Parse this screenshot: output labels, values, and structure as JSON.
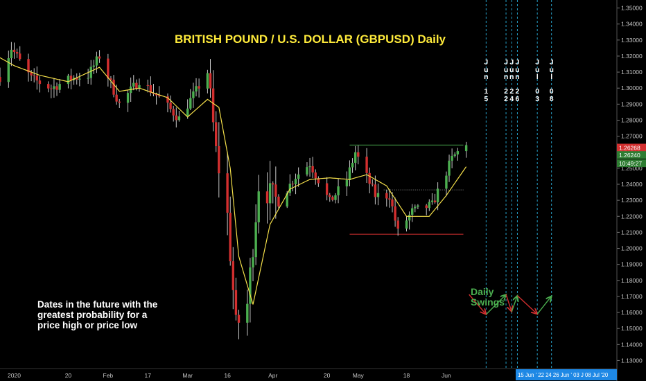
{
  "title": "BRITISH POUND / U.S. DOLLAR (GBPUSD) Daily",
  "note": "Dates in the future with the\ngreatest probability for a\nprice high or price low",
  "swings_label": "Daily\nSwings",
  "colors": {
    "up": "#4caf50",
    "down": "#d32f2f",
    "ma": "#f5e04a",
    "cycle_line": "#26a0c8",
    "title": "#ffeb3b",
    "resistance": "#4caf50",
    "support": "#d32f2f"
  },
  "chart_data": {
    "type": "candlestick",
    "title": "BRITISH POUND / U.S. DOLLAR (GBPUSD) Daily",
    "y_axis": {
      "position": "right",
      "range": [
        1.125,
        1.355
      ],
      "ticks": [
        1.13,
        1.14,
        1.15,
        1.16,
        1.17,
        1.18,
        1.19,
        1.2,
        1.21,
        1.22,
        1.23,
        1.24,
        1.25,
        1.26,
        1.27,
        1.28,
        1.29,
        1.3,
        1.31,
        1.32,
        1.33,
        1.34,
        1.35
      ],
      "tick_labels": [
        "1.13000",
        "1.14000",
        "1.15000",
        "1.16000",
        "1.17000",
        "1.18000",
        "1.19000",
        "1.20000",
        "1.21000",
        "1.22000",
        "1.23000",
        "1.24000",
        "1.25000",
        "1.26000",
        "1.27000",
        "1.28000",
        "1.29000",
        "1.30000",
        "1.31000",
        "1.32000",
        "1.33000",
        "1.34000",
        "1.35000"
      ]
    },
    "x_axis": {
      "range": [
        "2019-12-27",
        "2020-07-31"
      ],
      "ticks": [
        {
          "date": "2020-01-01",
          "label": "2020"
        },
        {
          "date": "2020-01-20",
          "label": "20"
        },
        {
          "date": "2020-02-03",
          "label": "Feb"
        },
        {
          "date": "2020-02-17",
          "label": "17"
        },
        {
          "date": "2020-03-02",
          "label": "Mar"
        },
        {
          "date": "2020-03-16",
          "label": "16"
        },
        {
          "date": "2020-04-01",
          "label": "Apr"
        },
        {
          "date": "2020-04-20",
          "label": "20"
        },
        {
          "date": "2020-05-01",
          "label": "May"
        },
        {
          "date": "2020-05-18",
          "label": "18"
        },
        {
          "date": "2020-06-01",
          "label": "Jun"
        }
      ]
    },
    "last_price_labels": [
      "1.26268",
      "1.26240",
      "10:49:27"
    ],
    "future_date_strip": "15 Jun ' 22 24 26 Jun ' 03 J 08 Jul '20",
    "cycle_dates": [
      {
        "date": "2020-06-15",
        "label": "Jun 15"
      },
      {
        "date": "2020-06-22",
        "label": "Jun 22"
      },
      {
        "date": "2020-06-24",
        "label": "Jun 24"
      },
      {
        "date": "2020-06-26",
        "label": "Jun 26"
      },
      {
        "date": "2020-07-03",
        "label": "Jul 03"
      },
      {
        "date": "2020-07-08",
        "label": "Jul 08"
      }
    ],
    "horizontal_lines": [
      {
        "kind": "resistance",
        "value": 1.2645,
        "from": "2020-04-28",
        "to": "2020-06-07"
      },
      {
        "kind": "support",
        "value": 1.2088,
        "from": "2020-04-28",
        "to": "2020-06-07"
      },
      {
        "kind": "dotted",
        "value": 1.2365,
        "from": "2020-05-10",
        "to": "2020-06-07"
      }
    ],
    "swing_zigzag": [
      {
        "date": "2020-06-09",
        "value": 1.1712,
        "color": "down"
      },
      {
        "date": "2020-06-15",
        "value": 1.1588,
        "color": "up"
      },
      {
        "date": "2020-06-22",
        "value": 1.1712,
        "color": "down"
      },
      {
        "date": "2020-06-24",
        "value": 1.1605,
        "color": "up"
      },
      {
        "date": "2020-06-26",
        "value": 1.1705,
        "color": "down"
      },
      {
        "date": "2020-07-03",
        "value": 1.159,
        "color": "up"
      },
      {
        "date": "2020-07-08",
        "value": 1.1702,
        "color": "none"
      }
    ],
    "series": [
      {
        "name": "GBPUSD",
        "type": "candlestick",
        "keypoints": [
          [
            "2019-12-27",
            1.307
          ],
          [
            "2019-12-31",
            1.325
          ],
          [
            "2020-01-07",
            1.306
          ],
          [
            "2020-01-14",
            1.3
          ],
          [
            "2020-01-21",
            1.306
          ],
          [
            "2020-01-27",
            1.308
          ],
          [
            "2020-01-31",
            1.32
          ],
          [
            "2020-02-07",
            1.29
          ],
          [
            "2020-02-14",
            1.305
          ],
          [
            "2020-02-21",
            1.294
          ],
          [
            "2020-02-28",
            1.281
          ],
          [
            "2020-03-09",
            1.31
          ],
          [
            "2020-03-12",
            1.26
          ],
          [
            "2020-03-16",
            1.22
          ],
          [
            "2020-03-19",
            1.151
          ],
          [
            "2020-03-23",
            1.165
          ],
          [
            "2020-03-27",
            1.24
          ],
          [
            "2020-04-03",
            1.229
          ],
          [
            "2020-04-09",
            1.245
          ],
          [
            "2020-04-14",
            1.253
          ],
          [
            "2020-04-21",
            1.229
          ],
          [
            "2020-04-27",
            1.243
          ],
          [
            "2020-04-30",
            1.26
          ],
          [
            "2020-05-07",
            1.233
          ],
          [
            "2020-05-12",
            1.233
          ],
          [
            "2020-05-15",
            1.21
          ],
          [
            "2020-05-20",
            1.223
          ],
          [
            "2020-05-27",
            1.227
          ],
          [
            "2020-06-03",
            1.256
          ],
          [
            "2020-06-08",
            1.266
          ]
        ]
      },
      {
        "name": "moving average",
        "type": "line",
        "keypoints": [
          [
            "2019-12-27",
            1.319
          ],
          [
            "2020-01-01",
            1.314
          ],
          [
            "2020-01-10",
            1.308
          ],
          [
            "2020-01-20",
            1.304
          ],
          [
            "2020-01-31",
            1.313
          ],
          [
            "2020-02-07",
            1.298
          ],
          [
            "2020-02-14",
            1.3
          ],
          [
            "2020-02-24",
            1.294
          ],
          [
            "2020-03-02",
            1.282
          ],
          [
            "2020-03-09",
            1.293
          ],
          [
            "2020-03-13",
            1.288
          ],
          [
            "2020-03-17",
            1.25
          ],
          [
            "2020-03-20",
            1.195
          ],
          [
            "2020-03-25",
            1.165
          ],
          [
            "2020-03-31",
            1.215
          ],
          [
            "2020-04-07",
            1.237
          ],
          [
            "2020-04-14",
            1.243
          ],
          [
            "2020-04-21",
            1.244
          ],
          [
            "2020-04-28",
            1.243
          ],
          [
            "2020-05-04",
            1.246
          ],
          [
            "2020-05-11",
            1.239
          ],
          [
            "2020-05-18",
            1.22
          ],
          [
            "2020-05-26",
            1.22
          ],
          [
            "2020-06-01",
            1.233
          ],
          [
            "2020-06-08",
            1.251
          ]
        ]
      }
    ]
  }
}
